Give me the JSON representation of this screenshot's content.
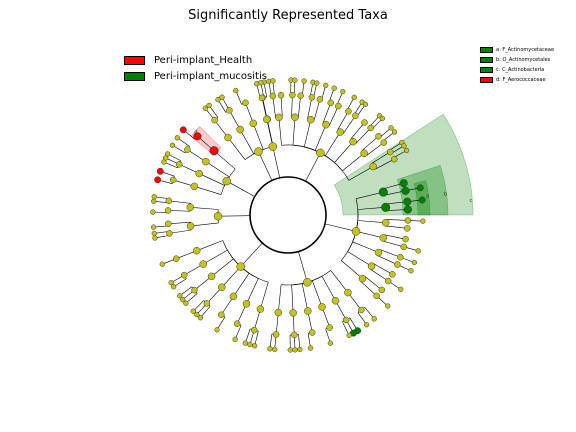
{
  "title": "Significantly Represented Taxa",
  "legend": [
    {
      "label": "Peri-implant_Health",
      "color": "#ff0000"
    },
    {
      "label": "Peri-implant_mucositis",
      "color": "#008000"
    }
  ],
  "clade_legend": [
    {
      "label": "a: F_Actinomycetaceae",
      "color": "#008000"
    },
    {
      "label": "b: O_Actinomycetales",
      "color": "#008000"
    },
    {
      "label": "c: C_Actinobacteria",
      "color": "#008000"
    },
    {
      "label": "d: F_Aerococcaceae",
      "color": "#ff0000"
    }
  ],
  "highlight_letters": [
    "c",
    "b",
    "a",
    "d"
  ],
  "node_colors": {
    "neutral": "#c3c31a",
    "health": "#ff0000",
    "mucositis": "#008000",
    "edge": "#000000"
  }
}
